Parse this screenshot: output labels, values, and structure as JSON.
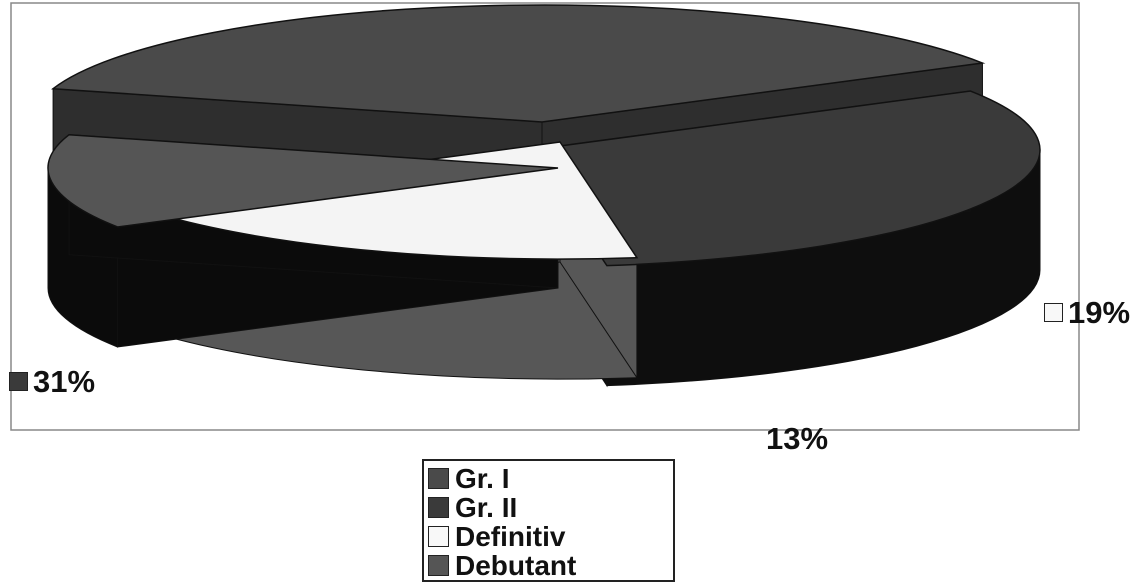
{
  "chart_data": {
    "type": "pie",
    "style": "3d-exploded",
    "categories": [
      "Gr. I",
      "Gr. II",
      "Definitiv",
      "Debutant"
    ],
    "values": [
      37,
      31,
      19,
      13
    ],
    "colors": [
      "#4a4a4a",
      "#3a3a3a",
      "#f4f4f4",
      "#555555"
    ],
    "slice_labels": [
      {
        "slice": "Gr. II",
        "text": "31%",
        "swatch_color": "#3a3a3a"
      },
      {
        "slice": "Definitiv",
        "text": "19%",
        "swatch_color": "#f8f8f8"
      },
      {
        "slice": "Debutant",
        "text": "13%",
        "swatch_color": null
      }
    ],
    "legend": {
      "placement": "bottom",
      "entries": [
        {
          "label": "Gr. I",
          "color": "#4a4a4a"
        },
        {
          "label": "Gr. II",
          "color": "#3a3a3a"
        },
        {
          "label": "Definitiv",
          "color": "#f8f8f8"
        },
        {
          "label": "Debutant",
          "color": "#555555"
        }
      ]
    }
  }
}
